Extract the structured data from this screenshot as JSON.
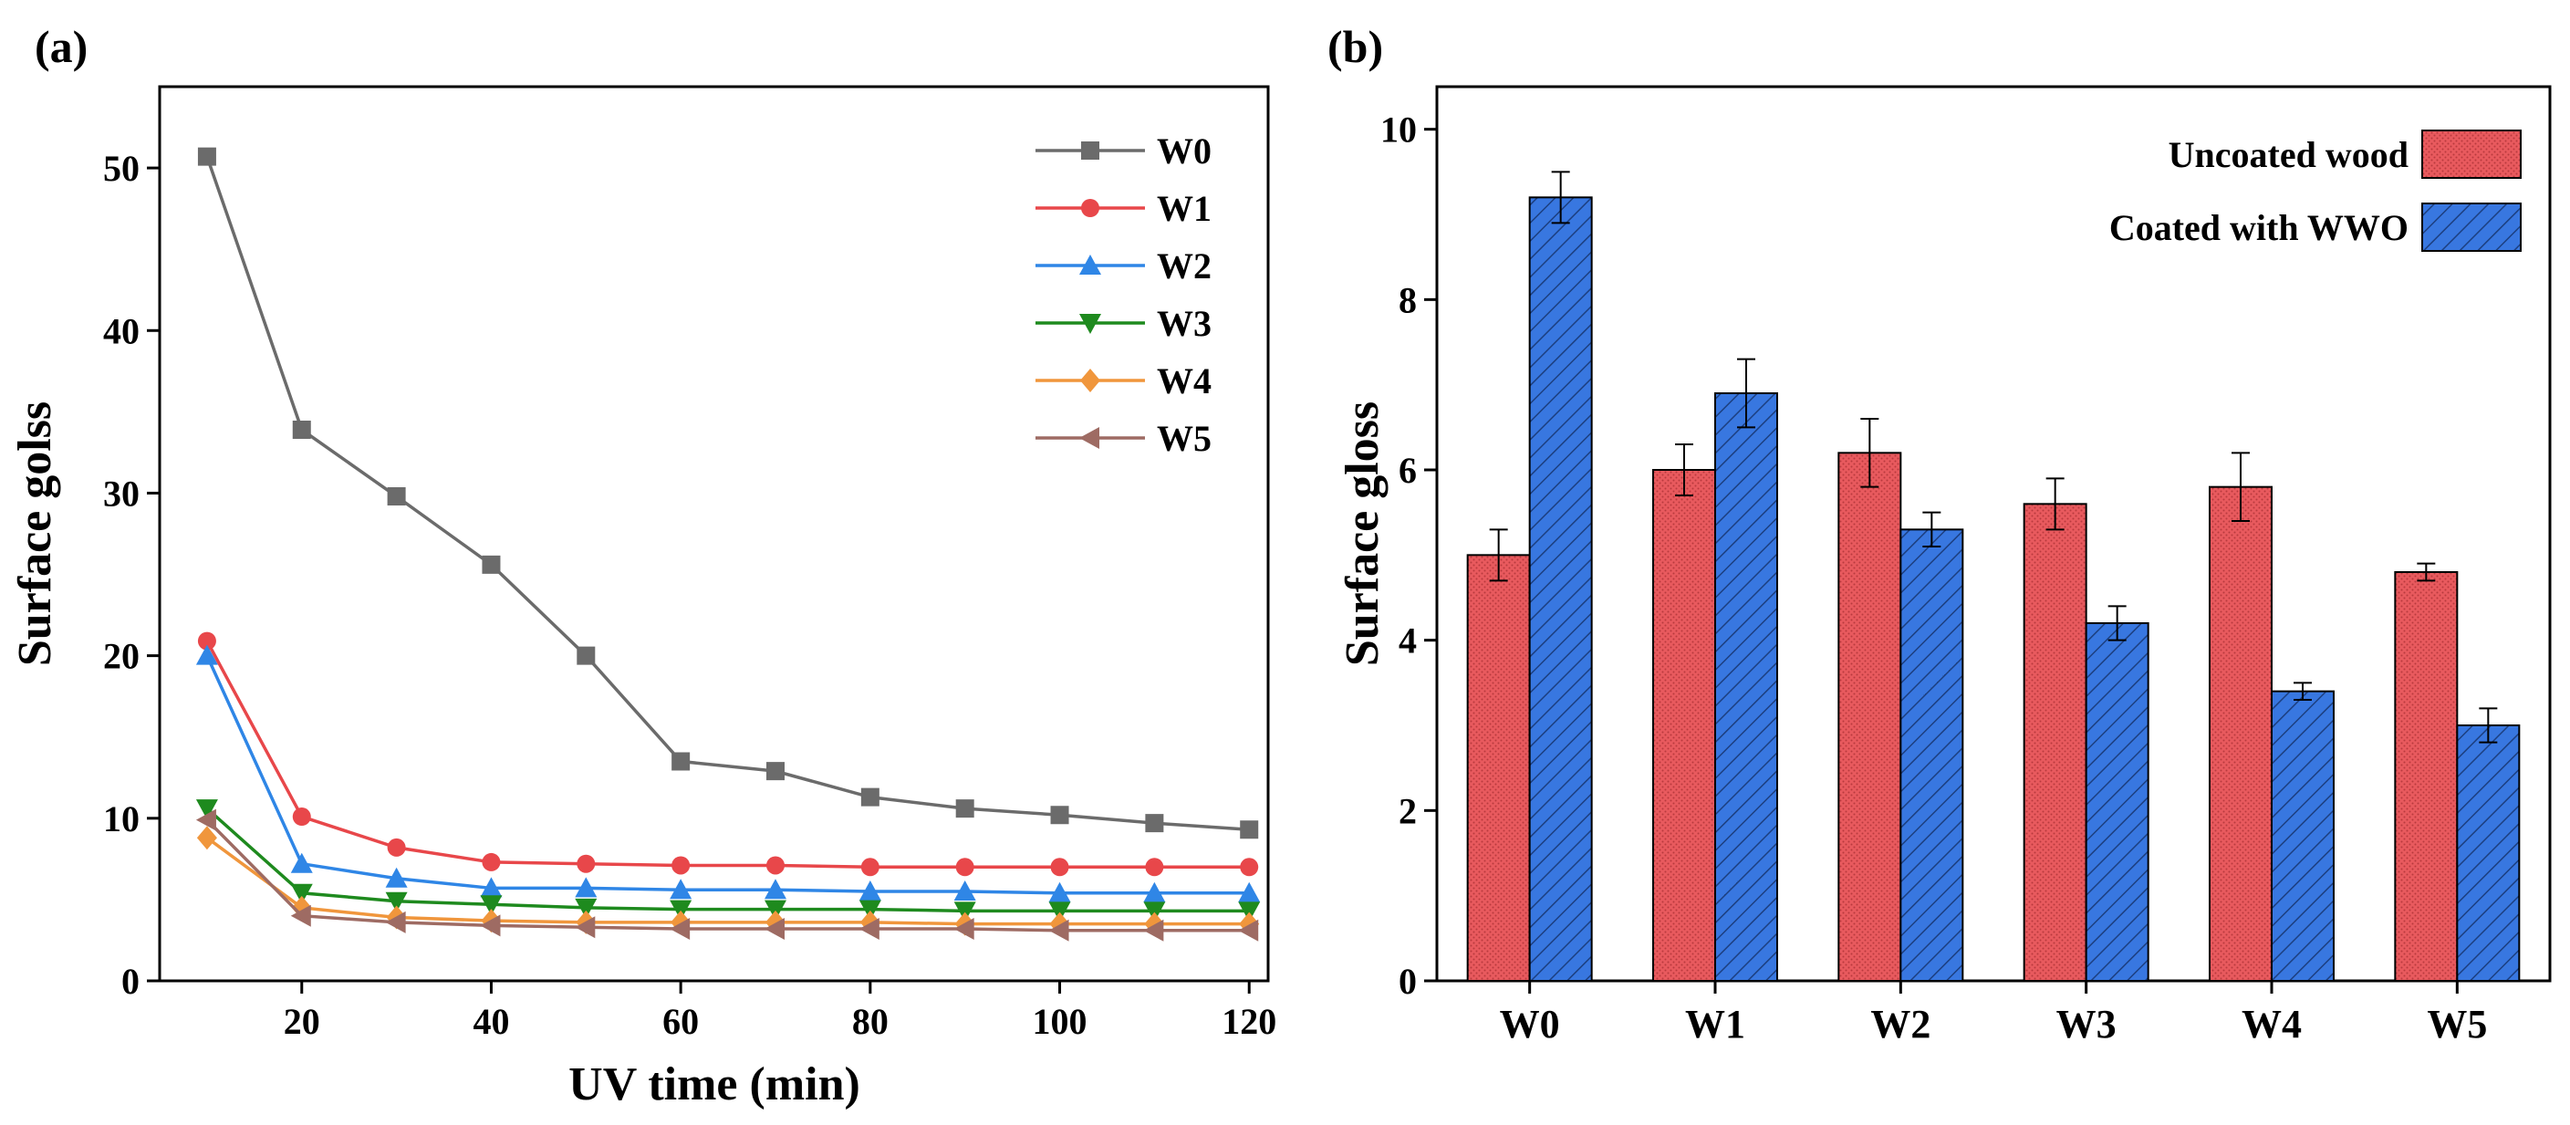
{
  "chart_data": [
    {
      "panel": "(a)",
      "type": "line",
      "title": "",
      "xlabel": "UV time (min)",
      "ylabel": "Surface golss",
      "xlim": [
        5,
        122
      ],
      "ylim": [
        0,
        55
      ],
      "xticks": [
        "20",
        "40",
        "60",
        "80",
        "100",
        "120"
      ],
      "yticks": [
        "0",
        "10",
        "20",
        "30",
        "40",
        "50"
      ],
      "x": [
        10,
        20,
        30,
        40,
        50,
        60,
        70,
        80,
        90,
        100,
        110,
        120
      ],
      "series": [
        {
          "name": "W0",
          "color": "#6b6b6b",
          "marker": "square",
          "values": [
            50.7,
            33.9,
            29.8,
            25.6,
            20.0,
            13.5,
            12.9,
            11.3,
            10.6,
            10.2,
            9.7,
            9.3
          ]
        },
        {
          "name": "W1",
          "color": "#e8474a",
          "marker": "circle",
          "values": [
            20.9,
            10.1,
            8.2,
            7.3,
            7.2,
            7.1,
            7.1,
            7.0,
            7.0,
            7.0,
            7.0,
            7.0
          ]
        },
        {
          "name": "W2",
          "color": "#2f86e6",
          "marker": "triangle-up",
          "values": [
            20.0,
            7.2,
            6.3,
            5.7,
            5.7,
            5.6,
            5.6,
            5.5,
            5.5,
            5.4,
            5.4,
            5.4
          ]
        },
        {
          "name": "W3",
          "color": "#1e8a1e",
          "marker": "triangle-down",
          "values": [
            10.6,
            5.4,
            4.9,
            4.7,
            4.5,
            4.4,
            4.4,
            4.4,
            4.3,
            4.3,
            4.3,
            4.3
          ]
        },
        {
          "name": "W4",
          "color": "#f0963c",
          "marker": "diamond",
          "values": [
            8.8,
            4.5,
            3.9,
            3.7,
            3.6,
            3.6,
            3.6,
            3.6,
            3.5,
            3.5,
            3.5,
            3.5
          ]
        },
        {
          "name": "W5",
          "color": "#9e6b63",
          "marker": "triangle-left",
          "values": [
            9.9,
            4.0,
            3.6,
            3.4,
            3.3,
            3.2,
            3.2,
            3.2,
            3.2,
            3.1,
            3.1,
            3.1
          ]
        }
      ],
      "legend_position": "top-right"
    },
    {
      "panel": "(b)",
      "type": "bar",
      "title": "",
      "xlabel": "",
      "ylabel": "Surface gloss",
      "ylim": [
        0,
        10.5
      ],
      "yticks": [
        "0",
        "2",
        "4",
        "6",
        "8",
        "10"
      ],
      "categories": [
        "W0",
        "W1",
        "W2",
        "W3",
        "W4",
        "W5"
      ],
      "series": [
        {
          "name": "Uncoated wood",
          "color": "#e85a5e",
          "pattern": "dots",
          "values": [
            5.0,
            6.0,
            6.2,
            5.6,
            5.8,
            4.8
          ],
          "errors": [
            0.3,
            0.3,
            0.4,
            0.3,
            0.4,
            0.1
          ]
        },
        {
          "name": "Coated with WWO",
          "color": "#3877e0",
          "pattern": "diagonal-hatch",
          "values": [
            9.2,
            6.9,
            5.3,
            4.2,
            3.4,
            3.0
          ],
          "errors": [
            0.3,
            0.4,
            0.2,
            0.2,
            0.1,
            0.2
          ]
        }
      ],
      "legend_position": "top-right"
    }
  ]
}
